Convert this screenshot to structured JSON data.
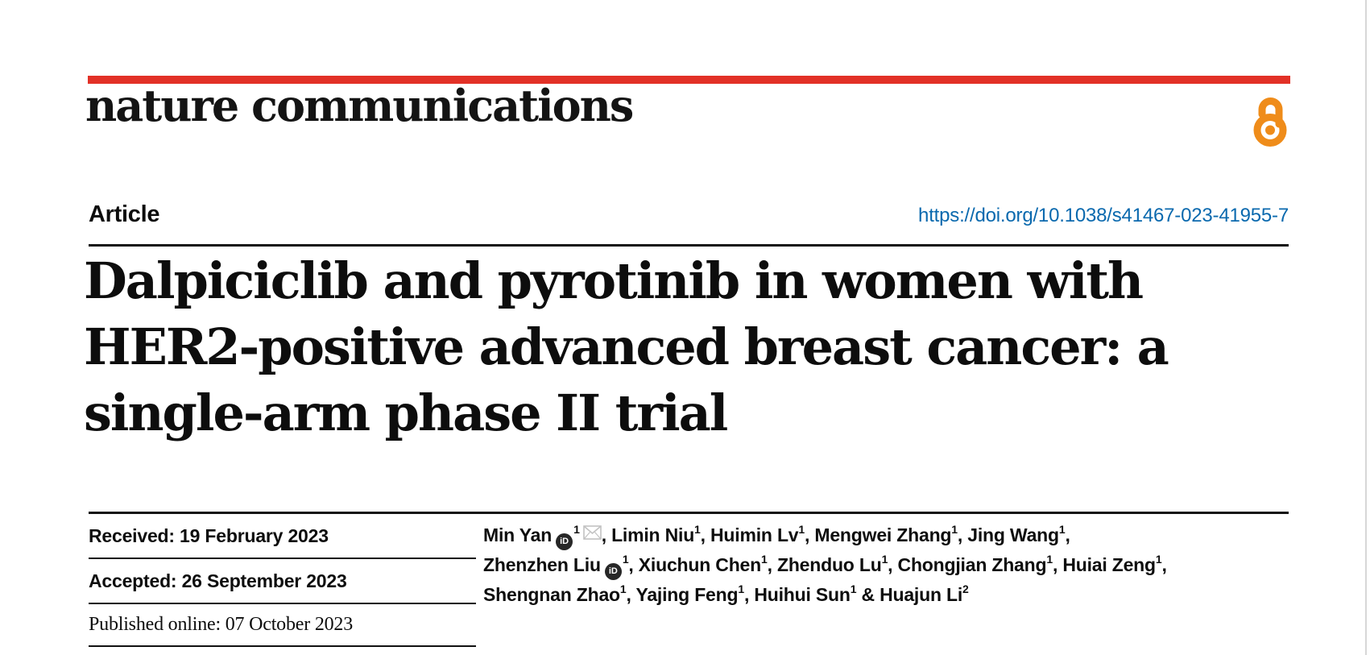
{
  "colors": {
    "brand_red": "#e23127",
    "link_blue": "#0a69ae",
    "open_access_orange": "#ef8c1a"
  },
  "masthead": {
    "journal_name": "nature communications",
    "open_access_icon": "open-padlock-icon"
  },
  "article_header": {
    "type_label": "Article",
    "doi_url": "https://doi.org/10.1038/s41467-023-41955-7"
  },
  "title": {
    "lines": [
      "Dalpiciclib and pyrotinib in women with",
      "HER2-positive advanced breast cancer: a",
      "single-arm phase II trial"
    ]
  },
  "history": {
    "received": "Received: 19 February 2023",
    "accepted": "Accepted: 26 September 2023",
    "published": "Published online: 07 October 2023"
  },
  "icons": {
    "orcid_label": "iD",
    "orcid": "orcid-id-icon",
    "email": "envelope-icon",
    "open_access": "open-padlock-icon"
  },
  "authors": {
    "lines": [
      [
        {
          "t": "text",
          "v": "Min Yan"
        },
        {
          "t": "orcid"
        },
        {
          "t": "sup",
          "v": "1"
        },
        {
          "t": "mail"
        },
        {
          "t": "text",
          "v": ", Limin Niu"
        },
        {
          "t": "sup",
          "v": "1"
        },
        {
          "t": "text",
          "v": ", Huimin Lv"
        },
        {
          "t": "sup",
          "v": "1"
        },
        {
          "t": "text",
          "v": ", Mengwei Zhang"
        },
        {
          "t": "sup",
          "v": "1"
        },
        {
          "t": "text",
          "v": ", Jing Wang"
        },
        {
          "t": "sup",
          "v": "1"
        },
        {
          "t": "text",
          "v": ","
        }
      ],
      [
        {
          "t": "text",
          "v": "Zhenzhen Liu"
        },
        {
          "t": "orcid"
        },
        {
          "t": "sup",
          "v": "1"
        },
        {
          "t": "text",
          "v": ", Xiuchun Chen"
        },
        {
          "t": "sup",
          "v": "1"
        },
        {
          "t": "text",
          "v": ", Zhenduo Lu"
        },
        {
          "t": "sup",
          "v": "1"
        },
        {
          "t": "text",
          "v": ", Chongjian Zhang"
        },
        {
          "t": "sup",
          "v": "1"
        },
        {
          "t": "text",
          "v": ", Huiai Zeng"
        },
        {
          "t": "sup",
          "v": "1"
        },
        {
          "t": "text",
          "v": ","
        }
      ],
      [
        {
          "t": "text",
          "v": "Shengnan Zhao"
        },
        {
          "t": "sup",
          "v": "1"
        },
        {
          "t": "text",
          "v": ", Yajing Feng"
        },
        {
          "t": "sup",
          "v": "1"
        },
        {
          "t": "text",
          "v": ", Huihui Sun"
        },
        {
          "t": "sup",
          "v": "1"
        },
        {
          "t": "text",
          "v": " & Huajun Li"
        },
        {
          "t": "sup",
          "v": "2"
        }
      ]
    ]
  }
}
